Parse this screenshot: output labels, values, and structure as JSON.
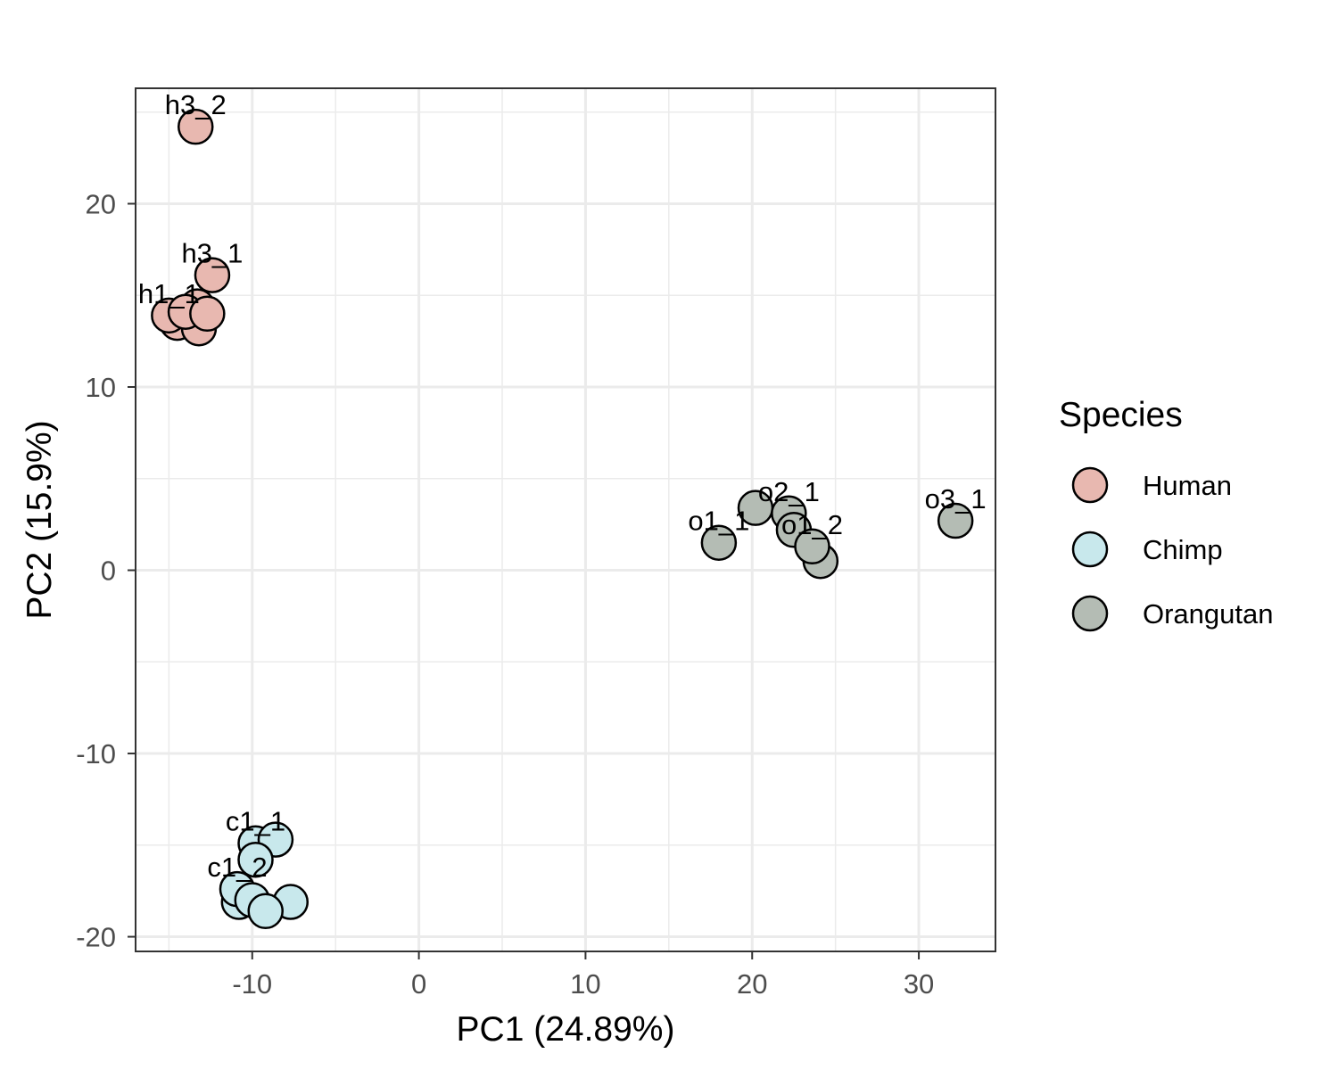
{
  "chart_data": {
    "type": "scatter",
    "xlabel": "PC1 (24.89%)",
    "ylabel": "PC2 (15.9%)",
    "xlim": [
      -17,
      34.6
    ],
    "ylim": [
      -20.8,
      26.3
    ],
    "x_ticks": [
      -10,
      0,
      10,
      20,
      30
    ],
    "y_ticks": [
      -20,
      -10,
      0,
      10,
      20
    ],
    "x_tick_labels": [
      "-10",
      "0",
      "10",
      "20",
      "30"
    ],
    "y_tick_labels": [
      "-20",
      "-10",
      "0",
      "10",
      "20"
    ],
    "grid": true,
    "legend": {
      "title": "Species",
      "placement": "right",
      "entries": [
        {
          "label": "Human",
          "color": "#e8b8b0"
        },
        {
          "label": "Chimp",
          "color": "#c8e8ec"
        },
        {
          "label": "Orangutan",
          "color": "#b4bcb4"
        }
      ]
    },
    "series": [
      {
        "name": "Human",
        "color": "#e8b8b0",
        "points": [
          {
            "x": -13.4,
            "y": 24.2,
            "label": "h3_2"
          },
          {
            "x": -12.4,
            "y": 16.1,
            "label": "h3_1"
          },
          {
            "x": -14.5,
            "y": 13.5,
            "label": ""
          },
          {
            "x": -13.2,
            "y": 13.2,
            "label": ""
          },
          {
            "x": -15.0,
            "y": 13.9,
            "label": "h1_1"
          },
          {
            "x": -13.3,
            "y": 14.4,
            "label": ""
          },
          {
            "x": -14.0,
            "y": 14.1,
            "label": ""
          },
          {
            "x": -12.7,
            "y": 14.0,
            "label": ""
          }
        ]
      },
      {
        "name": "Chimp",
        "color": "#c8e8ec",
        "points": [
          {
            "x": -9.8,
            "y": -14.9,
            "label": "c1_1"
          },
          {
            "x": -8.6,
            "y": -14.7,
            "label": ""
          },
          {
            "x": -9.8,
            "y": -15.8,
            "label": ""
          },
          {
            "x": -10.8,
            "y": -18.1,
            "label": ""
          },
          {
            "x": -10.9,
            "y": -17.4,
            "label": "c1_2"
          },
          {
            "x": -10.0,
            "y": -18.0,
            "label": ""
          },
          {
            "x": -7.7,
            "y": -18.1,
            "label": ""
          },
          {
            "x": -9.2,
            "y": -18.6,
            "label": ""
          }
        ]
      },
      {
        "name": "Orangutan",
        "color": "#b4bcb4",
        "points": [
          {
            "x": 18.0,
            "y": 1.5,
            "label": "o1_1"
          },
          {
            "x": 20.2,
            "y": 3.4,
            "label": ""
          },
          {
            "x": 22.2,
            "y": 3.1,
            "label": "o2_1"
          },
          {
            "x": 22.5,
            "y": 2.2,
            "label": ""
          },
          {
            "x": 24.1,
            "y": 0.5,
            "label": ""
          },
          {
            "x": 23.6,
            "y": 1.3,
            "label": "o1_2"
          },
          {
            "x": 32.2,
            "y": 2.7,
            "label": "o3_1"
          }
        ]
      }
    ]
  }
}
